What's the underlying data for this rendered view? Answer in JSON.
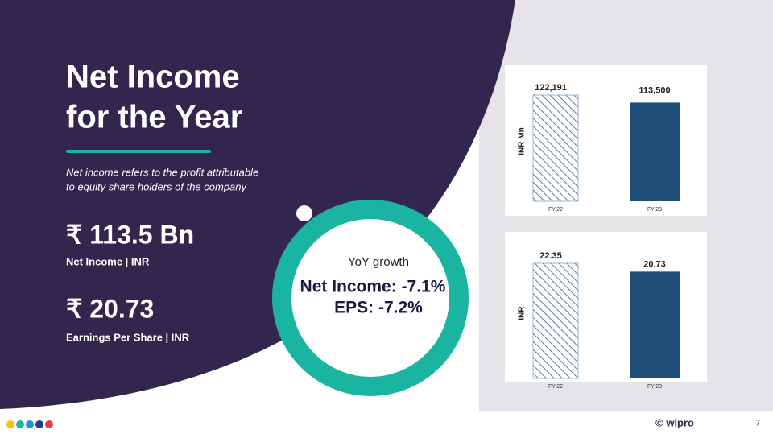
{
  "title_lines": [
    "Net Income",
    "for the Year"
  ],
  "description": [
    "Net income refers to the profit attributable",
    "to equity share holders of the company"
  ],
  "metrics": [
    {
      "value": "₹ 113.5 Bn",
      "label": "Net Income | INR"
    },
    {
      "value": "₹ 20.73",
      "label": "Earnings Per Share | INR"
    }
  ],
  "growth": {
    "heading": "YoY growth",
    "lines": [
      "Net Income: -7.1%",
      "EPS: -7.2%"
    ]
  },
  "charts": [
    {
      "type": "bar",
      "ylabel": "INR Mn",
      "categories": [
        "FY'22",
        "FY'23"
      ],
      "values": [
        122191,
        113500
      ],
      "value_labels": [
        "122,191",
        "113,500"
      ]
    },
    {
      "type": "bar",
      "ylabel": "INR",
      "categories": [
        "FY'22",
        "FY'23"
      ],
      "values": [
        22.35,
        20.73
      ]
    }
  ],
  "footer": {
    "brand": "© wipro",
    "page": "7"
  }
}
